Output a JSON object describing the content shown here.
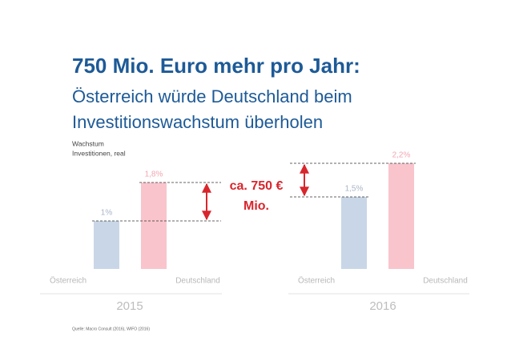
{
  "title": "750 Mio. Euro mehr pro Jahr:",
  "subtitle": [
    "Österreich würde Deutschland beim",
    "Investitionswachstum überholen"
  ],
  "annotation": [
    "ca. 750 €",
    "Mio."
  ],
  "source": "Quelle: Macro Consult (2016), WIFO (2016)",
  "chart_data": [
    {
      "type": "bar",
      "title": "2015",
      "y_label": [
        "Wachstum",
        "Investitionen, real"
      ],
      "categories": [
        "Österreich",
        "Deutschland"
      ],
      "values": [
        1,
        1.8
      ],
      "value_labels": [
        "1%",
        "1,8%"
      ],
      "colors": [
        "#c9d6e7",
        "#f9c4cc"
      ]
    },
    {
      "type": "bar",
      "title": "2016",
      "categories": [
        "Österreich",
        "Deutschland"
      ],
      "values": [
        1.5,
        2.2
      ],
      "value_labels": [
        "1,5%",
        "2,2%"
      ],
      "colors": [
        "#c9d6e7",
        "#f9c4cc"
      ]
    }
  ]
}
